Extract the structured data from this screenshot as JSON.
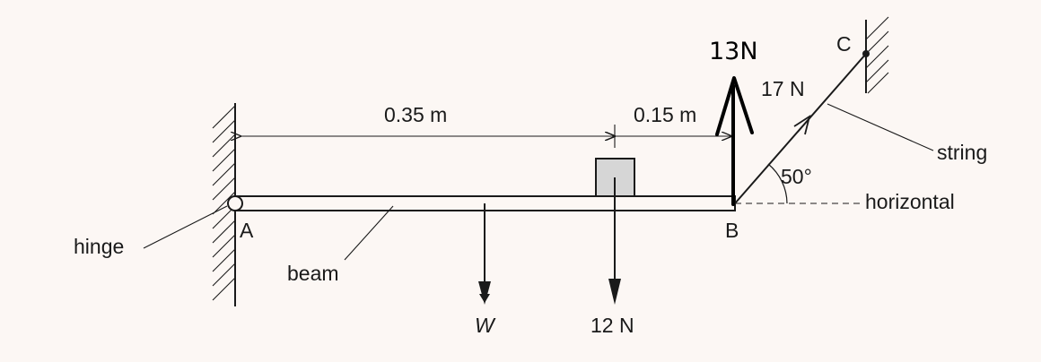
{
  "labels": {
    "point_a": "A",
    "point_b": "B",
    "point_c": "C",
    "hinge": "hinge",
    "beam": "beam",
    "string": "string",
    "horizontal": "horizontal",
    "dim_left": "0.35 m",
    "dim_right": "0.15 m",
    "weight": "W",
    "load": "12 N",
    "tension": "17 N",
    "angle": "50°",
    "handwritten_force": "13N"
  },
  "colors": {
    "background": "#fcf7f4",
    "ink": "#1a1a1a",
    "block_fill": "#d6d6d6"
  }
}
